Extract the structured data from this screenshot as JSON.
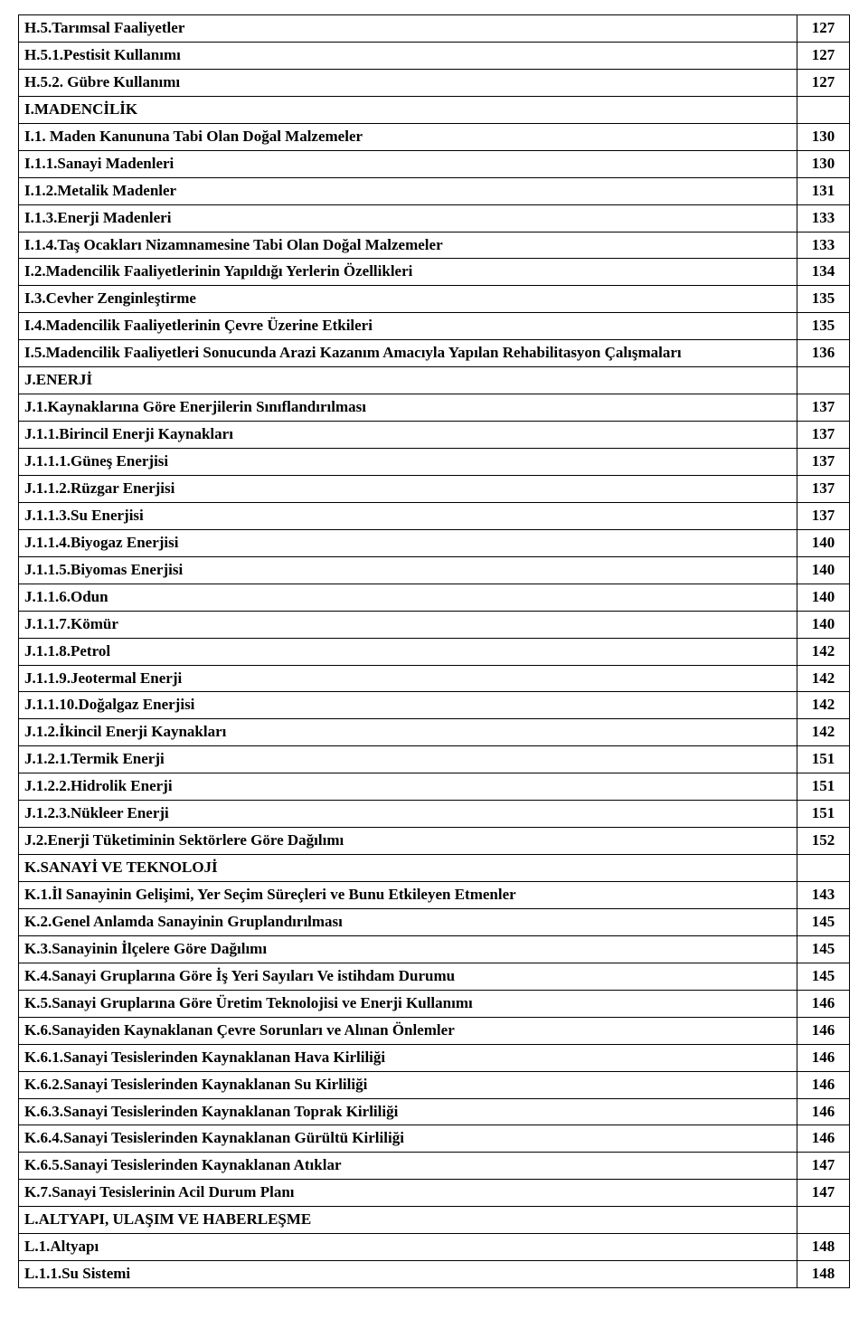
{
  "rows": [
    {
      "label": "H.5.Tarımsal Faaliyetler",
      "page": "127"
    },
    {
      "label": "H.5.1.Pestisit Kullanımı",
      "page": "127"
    },
    {
      "label": "H.5.2. Gübre Kullanımı",
      "page": "127"
    },
    {
      "label": "I.MADENCİLİK",
      "page": ""
    },
    {
      "label": "I.1. Maden Kanununa Tabi Olan Doğal Malzemeler",
      "page": "130"
    },
    {
      "label": "I.1.1.Sanayi Madenleri",
      "page": "130"
    },
    {
      "label": "I.1.2.Metalik Madenler",
      "page": "131"
    },
    {
      "label": "I.1.3.Enerji Madenleri",
      "page": "133"
    },
    {
      "label": "I.1.4.Taş Ocakları Nizamnamesine Tabi Olan Doğal Malzemeler",
      "page": "133"
    },
    {
      "label": "I.2.Madencilik Faaliyetlerinin Yapıldığı Yerlerin Özellikleri",
      "page": "134"
    },
    {
      "label": "I.3.Cevher Zenginleştirme",
      "page": "135"
    },
    {
      "label": "I.4.Madencilik Faaliyetlerinin Çevre Üzerine Etkileri",
      "page": "135"
    },
    {
      "label": "I.5.Madencilik Faaliyetleri Sonucunda Arazi Kazanım Amacıyla Yapılan Rehabilitasyon Çalışmaları",
      "page": "136"
    },
    {
      "label": "J.ENERJİ",
      "page": ""
    },
    {
      "label": "J.1.Kaynaklarına Göre Enerjilerin Sınıflandırılması",
      "page": "137"
    },
    {
      "label": "J.1.1.Birincil Enerji Kaynakları",
      "page": "137"
    },
    {
      "label": "J.1.1.1.Güneş Enerjisi",
      "page": "137"
    },
    {
      "label": "J.1.1.2.Rüzgar Enerjisi",
      "page": "137"
    },
    {
      "label": "J.1.1.3.Su Enerjisi",
      "page": "137"
    },
    {
      "label": "J.1.1.4.Biyogaz Enerjisi",
      "page": "140"
    },
    {
      "label": "J.1.1.5.Biyomas Enerjisi",
      "page": "140"
    },
    {
      "label": "J.1.1.6.Odun",
      "page": "140"
    },
    {
      "label": "J.1.1.7.Kömür",
      "page": "140"
    },
    {
      "label": "J.1.1.8.Petrol",
      "page": "142"
    },
    {
      "label": "J.1.1.9.Jeotermal Enerji",
      "page": "142"
    },
    {
      "label": "J.1.1.10.Doğalgaz Enerjisi",
      "page": "142"
    },
    {
      "label": "J.1.2.İkincil Enerji Kaynakları",
      "page": "142"
    },
    {
      "label": "J.1.2.1.Termik Enerji",
      "page": "151"
    },
    {
      "label": "J.1.2.2.Hidrolik Enerji",
      "page": "151"
    },
    {
      "label": "J.1.2.3.Nükleer Enerji",
      "page": "151"
    },
    {
      "label": "J.2.Enerji Tüketiminin Sektörlere Göre Dağılımı",
      "page": "152"
    },
    {
      "label": "K.SANAYİ VE TEKNOLOJİ",
      "page": ""
    },
    {
      "label": "K.1.İl Sanayinin Gelişimi, Yer Seçim Süreçleri ve Bunu Etkileyen Etmenler",
      "page": "143"
    },
    {
      "label": "K.2.Genel Anlamda Sanayinin Gruplandırılması",
      "page": "145"
    },
    {
      "label": "K.3.Sanayinin İlçelere Göre Dağılımı",
      "page": "145"
    },
    {
      "label": "K.4.Sanayi Gruplarına Göre İş Yeri Sayıları Ve istihdam Durumu",
      "page": "145"
    },
    {
      "label": "K.5.Sanayi Gruplarına Göre Üretim Teknolojisi ve Enerji Kullanımı",
      "page": "146"
    },
    {
      "label": "K.6.Sanayiden Kaynaklanan Çevre Sorunları ve Alınan Önlemler",
      "page": "146"
    },
    {
      "label": "K.6.1.Sanayi Tesislerinden Kaynaklanan Hava Kirliliği",
      "page": "146"
    },
    {
      "label": "K.6.2.Sanayi Tesislerinden Kaynaklanan Su Kirliliği",
      "page": "146"
    },
    {
      "label": "K.6.3.Sanayi Tesislerinden Kaynaklanan Toprak Kirliliği",
      "page": "146"
    },
    {
      "label": "K.6.4.Sanayi Tesislerinden Kaynaklanan Gürültü Kirliliği",
      "page": "146"
    },
    {
      "label": "K.6.5.Sanayi Tesislerinden Kaynaklanan Atıklar",
      "page": "147"
    },
    {
      "label": "K.7.Sanayi Tesislerinin Acil Durum Planı",
      "page": "147"
    },
    {
      "label": "L.ALTYAPI, ULAŞIM VE HABERLEŞME",
      "page": ""
    },
    {
      "label": "L.1.Altyapı",
      "page": "148"
    },
    {
      "label": "L.1.1.Su Sistemi",
      "page": "148"
    }
  ]
}
